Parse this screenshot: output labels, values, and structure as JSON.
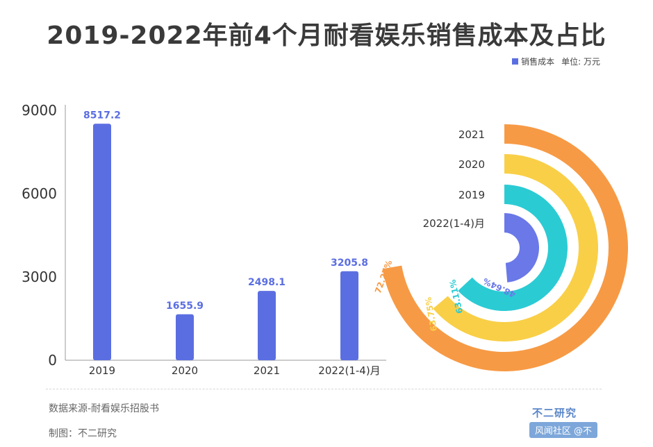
{
  "title": "2019-2022年前4个月耐看娱乐销售成本及占比",
  "legend": {
    "series_label": "销售成本",
    "unit": "单位: 万元"
  },
  "colors": {
    "bar": "#5b6ee1",
    "ring_2021": "#f79a45",
    "ring_2020": "#f9cf47",
    "ring_2019": "#2bcbd4",
    "ring_2022": "#6a78e8",
    "axis": "#9a9a9a"
  },
  "chart_data": [
    {
      "type": "bar",
      "title": "销售成本",
      "categories": [
        "2019",
        "2020",
        "2021",
        "2022(1-4)月"
      ],
      "values": [
        8517.2,
        1655.9,
        2498.1,
        3205.8
      ],
      "value_labels": [
        "8517.2",
        "1655.9",
        "2498.1",
        "3205.8"
      ],
      "yticks": [
        "0",
        "3000",
        "6000",
        "9000"
      ],
      "ytick_values": [
        0,
        3000,
        6000,
        9000
      ],
      "ylim": [
        0,
        9000
      ],
      "xlabel": "",
      "ylabel": ""
    },
    {
      "type": "pie",
      "subtype": "radial-bar",
      "categories": [
        "2021",
        "2020",
        "2019",
        "2022(1-4)月"
      ],
      "values": [
        72.27,
        63.75,
        63.11,
        48.64
      ],
      "value_labels": [
        "72.27%",
        "63.75%",
        "63.11%",
        "48.64%"
      ],
      "max": 100
    }
  ],
  "footer": {
    "source": "数据来源-耐看娱乐招股书",
    "author": "制图：不二研究",
    "brand": "不二研究",
    "badge": "风闻社区 @不"
  },
  "watermark_text": "不二研究"
}
